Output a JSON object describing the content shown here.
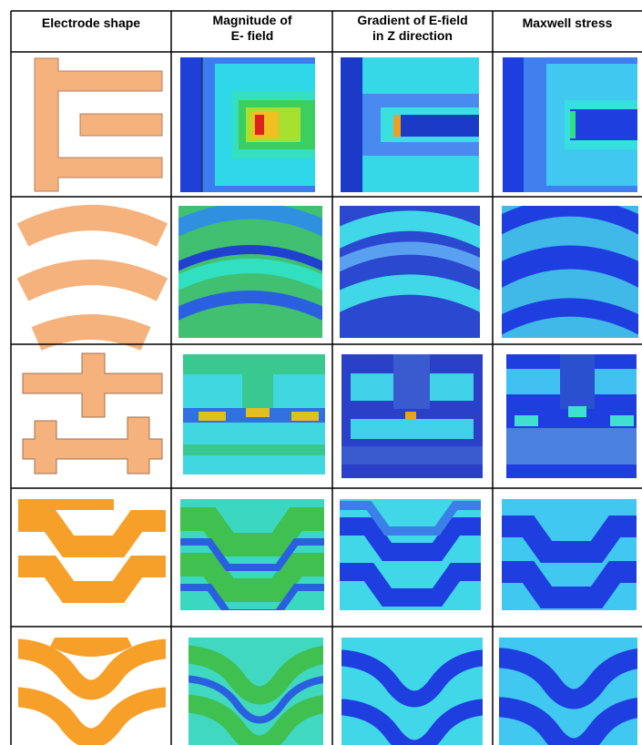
{
  "table": {
    "header": [
      [
        "Electrode shape"
      ],
      [
        "Magnitude of",
        "E- field"
      ],
      [
        "Gradient of E-field",
        "in Z direction"
      ],
      [
        "Maxwell stress"
      ]
    ]
  }
}
